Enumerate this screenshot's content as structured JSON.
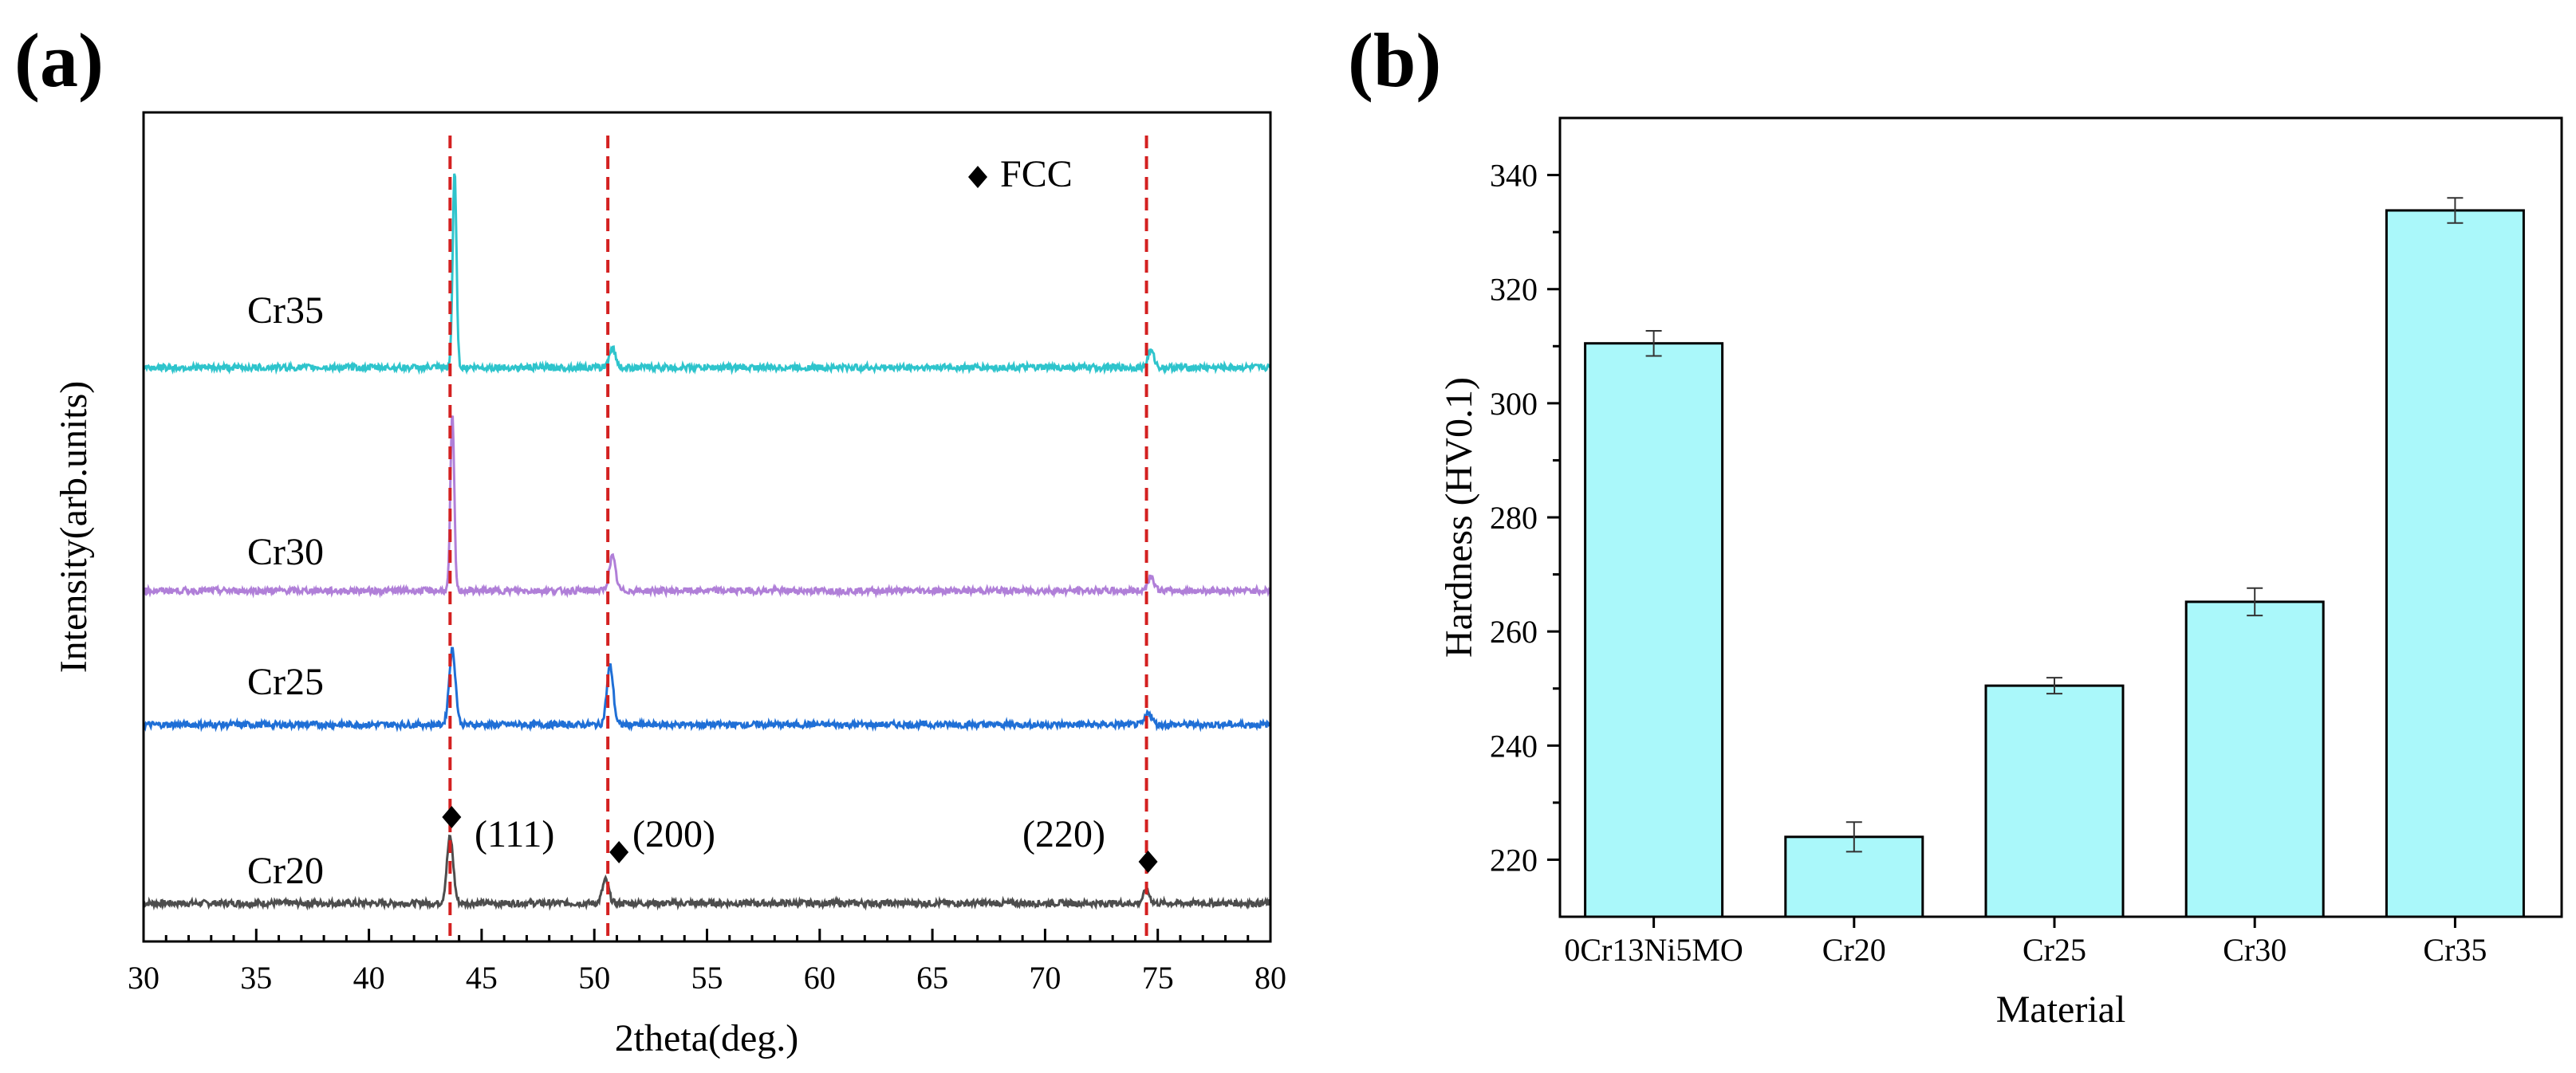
{
  "panels": {
    "a": {
      "label": "(a)"
    },
    "b": {
      "label": "(b)"
    }
  },
  "chart_data": [
    {
      "panel": "a",
      "type": "line",
      "title": "",
      "xlabel": "2theta(deg.)",
      "ylabel": "Intensity(arb.units)",
      "xlim": [
        30,
        80
      ],
      "x_ticks": [
        30,
        35,
        40,
        45,
        50,
        55,
        60,
        65,
        70,
        75,
        80
      ],
      "x_tick_labels": [
        "30",
        "35",
        "40",
        "45",
        "50",
        "55",
        "60",
        "65",
        "70",
        "75",
        "80"
      ],
      "y_ticks_shown": false,
      "grid": false,
      "legend": {
        "position": "top-right",
        "marker": "diamond",
        "label": "FCC"
      },
      "reference_lines": [
        43.6,
        50.6,
        74.5
      ],
      "peak_markers": [
        {
          "x": 43.6,
          "label": "(111)"
        },
        {
          "x": 50.6,
          "label": "(200)"
        },
        {
          "x": 74.5,
          "label": "(220)"
        }
      ],
      "series": [
        {
          "name": "Cr20",
          "color": "#4d4d4d",
          "baseline": 0.0,
          "peaks": [
            {
              "x": 43.6,
              "h": 0.37
            },
            {
              "x": 50.5,
              "h": 0.13
            },
            {
              "x": 74.5,
              "h": 0.07
            }
          ]
        },
        {
          "name": "Cr25",
          "color": "#1f6fd6",
          "baseline": 1.0,
          "peaks": [
            {
              "x": 43.7,
              "h": 0.42
            },
            {
              "x": 50.7,
              "h": 0.33
            },
            {
              "x": 74.6,
              "h": 0.07
            }
          ]
        },
        {
          "name": "Cr30",
          "color": "#b07fd8",
          "baseline": 1.75,
          "peaks": [
            {
              "x": 43.7,
              "h": 0.98
            },
            {
              "x": 50.8,
              "h": 0.19
            },
            {
              "x": 74.7,
              "h": 0.08
            }
          ]
        },
        {
          "name": "Cr35",
          "color": "#2ec4cc",
          "baseline": 3.0,
          "peaks": [
            {
              "x": 43.8,
              "h": 1.1
            },
            {
              "x": 50.8,
              "h": 0.11
            },
            {
              "x": 74.7,
              "h": 0.09
            }
          ]
        }
      ]
    },
    {
      "panel": "b",
      "type": "bar",
      "title": "",
      "xlabel": "Material",
      "ylabel": "Hardness (HV0.1)",
      "ylim": [
        210,
        350
      ],
      "y_ticks": [
        220,
        240,
        260,
        280,
        300,
        320,
        340
      ],
      "categories": [
        "0Cr13Ni5MO",
        "Cr20",
        "Cr25",
        "Cr30",
        "Cr35"
      ],
      "values": [
        310.5,
        224.0,
        250.5,
        265.2,
        333.8
      ],
      "errors": [
        2.2,
        2.6,
        1.4,
        2.4,
        2.2
      ],
      "bar_color": "#aaf8fa",
      "grid": false
    }
  ]
}
